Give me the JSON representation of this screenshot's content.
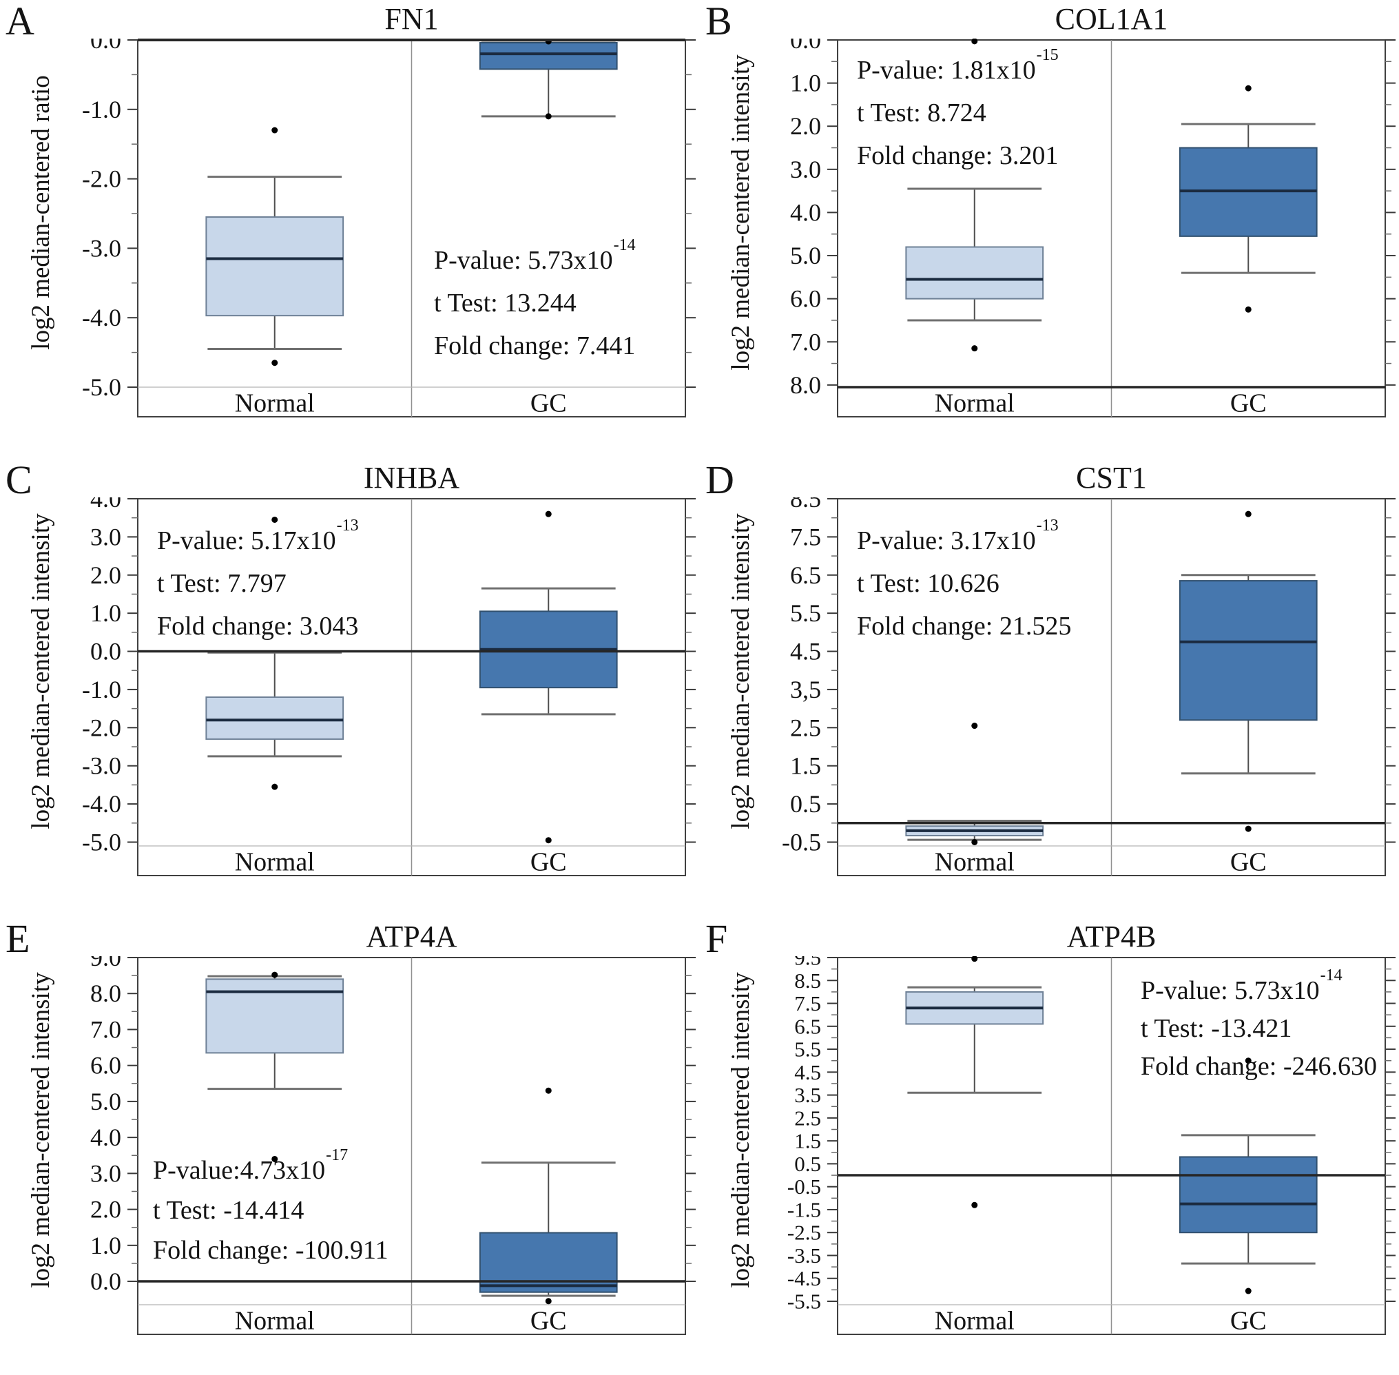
{
  "colors": {
    "box_light": "#c8d7ea",
    "box_light_border": "#6e8096",
    "box_dark": "#4677ae",
    "box_dark_border": "#32516f",
    "median": "#1b2b40",
    "whisker": "#4f4f4f",
    "cap": "#6f6f6f",
    "frame": "#404040",
    "thick_line": "#262626",
    "thin_line": "#b5b5b5",
    "divider": "#909090",
    "tick": "#3a3a3a",
    "tick_minor": "#6a6a6a",
    "outlier": "#000000",
    "text": "#141414"
  },
  "panels": [
    {
      "letter": "A",
      "title": "FN1",
      "ylabel": "log2 median-centered ratio",
      "stats": {
        "pvalue_base": "P-value: 5.73x10",
        "pvalue_exp": "-14",
        "t_test": "t Test: 13.244",
        "fold_change": "Fold change: 7.441"
      }
    },
    {
      "letter": "B",
      "title": "COL1A1",
      "ylabel": "log2 median-centered intensity",
      "stats": {
        "pvalue_base": "P-value: 1.81x10",
        "pvalue_exp": "-15",
        "t_test": "t Test: 8.724",
        "fold_change": "Fold change: 3.201"
      }
    },
    {
      "letter": "C",
      "title": "INHBA",
      "ylabel": "log2 median-centered intensity",
      "stats": {
        "pvalue_base": "P-value: 5.17x10",
        "pvalue_exp": "-13",
        "t_test": "t Test: 7.797",
        "fold_change": "Fold change: 3.043"
      }
    },
    {
      "letter": "D",
      "title": "CST1",
      "ylabel": "log2 median-centered intensity",
      "stats": {
        "pvalue_base": "P-value: 3.17x10",
        "pvalue_exp": "-13",
        "t_test": "t Test: 10.626",
        "fold_change": "Fold change: 21.525"
      }
    },
    {
      "letter": "E",
      "title": "ATP4A",
      "ylabel": "log2 median-centered intensity",
      "stats": {
        "pvalue_base": "P-value:4.73x10",
        "pvalue_exp": "-17",
        "t_test": "t Test: -14.414",
        "fold_change": "Fold change: -100.911"
      }
    },
    {
      "letter": "F",
      "title": "ATP4B",
      "ylabel": "log2 median-centered intensity",
      "stats": {
        "pvalue_base": "P-value: 5.73x10",
        "pvalue_exp": "-14",
        "t_test": "t Test: -13.421",
        "fold_change": "Fold change: -246.630"
      }
    }
  ],
  "chart_data": [
    {
      "type": "box",
      "gene": "FN1",
      "p_value": "5.73x10^-14",
      "t_test": 13.244,
      "fold_change": 7.441,
      "y_axis": {
        "top": 0.0,
        "bottom": -5.0,
        "ticks": [
          {
            "v": 0.0,
            "label": "0.0"
          },
          {
            "v": -1.0,
            "label": "-1.0"
          },
          {
            "v": -2.0,
            "label": "-2.0"
          },
          {
            "v": -3.0,
            "label": "-3.0"
          },
          {
            "v": -4.0,
            "label": "-4.0"
          },
          {
            "v": -5.0,
            "label": "-5.0"
          }
        ]
      },
      "zero_line": null,
      "top_frame_thick": true,
      "bottom_line_thick": false,
      "groups": [
        {
          "label": "Normal",
          "shade": "light",
          "whisker_top": -1.97,
          "box_top": -2.55,
          "median": -3.15,
          "box_bottom": -3.97,
          "whisker_bottom": -4.45,
          "outliers": [
            -1.3,
            -4.65
          ]
        },
        {
          "label": "GC",
          "shade": "dark",
          "whisker_top": -0.04,
          "box_top": -0.04,
          "median": -0.2,
          "box_bottom": -0.42,
          "whisker_bottom": -1.1,
          "outliers": [
            -0.02,
            -1.1
          ]
        }
      ]
    },
    {
      "type": "box",
      "gene": "COL1A1",
      "p_value": "1.81x10^-15",
      "t_test": 8.724,
      "fold_change": 3.201,
      "y_axis": {
        "top": 0.0,
        "bottom": 8.05,
        "ticks": [
          {
            "v": 0.0,
            "label": "0.0"
          },
          {
            "v": 1.0,
            "label": "1.0"
          },
          {
            "v": 2.0,
            "label": "2.0"
          },
          {
            "v": 3.0,
            "label": "3.0"
          },
          {
            "v": 4.0,
            "label": "4.0"
          },
          {
            "v": 5.0,
            "label": "5.0"
          },
          {
            "v": 6.0,
            "label": "6.0"
          },
          {
            "v": 7.0,
            "label": "7.0"
          },
          {
            "v": 8.0,
            "label": "8.0"
          }
        ]
      },
      "zero_line": null,
      "top_frame_thick": false,
      "bottom_line_thick": true,
      "groups": [
        {
          "label": "Normal",
          "shade": "light",
          "whisker_top": 3.45,
          "box_top": 4.8,
          "median": 5.55,
          "box_bottom": 6.0,
          "whisker_bottom": 6.5,
          "outliers": [
            0.03,
            7.15
          ]
        },
        {
          "label": "GC",
          "shade": "dark",
          "whisker_top": 1.95,
          "box_top": 2.5,
          "median": 3.5,
          "box_bottom": 4.55,
          "whisker_bottom": 5.4,
          "outliers": [
            1.12,
            6.25
          ]
        }
      ]
    },
    {
      "type": "box",
      "gene": "INHBA",
      "p_value": "5.17x10^-13",
      "t_test": 7.797,
      "fold_change": 3.043,
      "y_axis": {
        "top": 4.0,
        "bottom": -5.1,
        "ticks": [
          {
            "v": 4.0,
            "label": "4.0"
          },
          {
            "v": 3.0,
            "label": "3.0"
          },
          {
            "v": 2.0,
            "label": "2.0"
          },
          {
            "v": 1.0,
            "label": "1.0"
          },
          {
            "v": 0.0,
            "label": "0.0"
          },
          {
            "v": -1.0,
            "label": "-1.0"
          },
          {
            "v": -2.0,
            "label": "-2.0"
          },
          {
            "v": -3.0,
            "label": "-3.0"
          },
          {
            "v": -4.0,
            "label": "-4.0"
          },
          {
            "v": -5.0,
            "label": "-5.0"
          }
        ]
      },
      "zero_line": 0.0,
      "top_frame_thick": false,
      "bottom_line_thick": false,
      "groups": [
        {
          "label": "Normal",
          "shade": "light",
          "whisker_top": -0.03,
          "box_top": -1.2,
          "median": -1.8,
          "box_bottom": -2.3,
          "whisker_bottom": -2.75,
          "outliers": [
            3.45,
            -3.55
          ]
        },
        {
          "label": "GC",
          "shade": "dark",
          "whisker_top": 1.65,
          "box_top": 1.05,
          "median": 0.05,
          "box_bottom": -0.95,
          "whisker_bottom": -1.65,
          "outliers": [
            3.6,
            -4.95
          ]
        }
      ]
    },
    {
      "type": "box",
      "gene": "CST1",
      "p_value": "3.17x10^-13",
      "t_test": 10.626,
      "fold_change": 21.525,
      "y_axis": {
        "top": 8.5,
        "bottom": -0.6,
        "ticks": [
          {
            "v": 8.5,
            "label": "8.5"
          },
          {
            "v": 7.5,
            "label": "7.5"
          },
          {
            "v": 6.5,
            "label": "6.5"
          },
          {
            "v": 5.5,
            "label": "5.5"
          },
          {
            "v": 4.5,
            "label": "4.5"
          },
          {
            "v": 3.5,
            "label": "3,5"
          },
          {
            "v": 2.5,
            "label": "2.5"
          },
          {
            "v": 1.5,
            "label": "1.5"
          },
          {
            "v": 0.5,
            "label": "0.5"
          },
          {
            "v": -0.5,
            "label": "-0.5"
          }
        ]
      },
      "zero_line": 0.0,
      "top_frame_thick": false,
      "bottom_line_thick": false,
      "groups": [
        {
          "label": "Normal",
          "shade": "light",
          "whisker_top": 0.06,
          "box_top": -0.08,
          "median": -0.2,
          "box_bottom": -0.33,
          "whisker_bottom": -0.44,
          "outliers": [
            2.55,
            -0.5
          ]
        },
        {
          "label": "GC",
          "shade": "dark",
          "whisker_top": 6.5,
          "box_top": 6.35,
          "median": 4.75,
          "box_bottom": 2.7,
          "whisker_bottom": 1.3,
          "outliers": [
            8.1,
            -0.15
          ]
        }
      ]
    },
    {
      "type": "box",
      "gene": "ATP4A",
      "p_value": "4.73x10^-17",
      "t_test": -14.414,
      "fold_change": -100.911,
      "y_axis": {
        "top": 9.0,
        "bottom": -0.65,
        "ticks": [
          {
            "v": 9.0,
            "label": "9.0"
          },
          {
            "v": 8.0,
            "label": "8.0"
          },
          {
            "v": 7.0,
            "label": "7.0"
          },
          {
            "v": 6.0,
            "label": "6.0"
          },
          {
            "v": 5.0,
            "label": "5.0"
          },
          {
            "v": 4.0,
            "label": "4.0"
          },
          {
            "v": 3.0,
            "label": "3.0"
          },
          {
            "v": 2.0,
            "label": "2.0"
          },
          {
            "v": 1.0,
            "label": "1.0"
          },
          {
            "v": 0.0,
            "label": "0.0"
          }
        ]
      },
      "zero_line": 0.0,
      "top_frame_thick": false,
      "bottom_line_thick": false,
      "groups": [
        {
          "label": "Normal",
          "shade": "light",
          "whisker_top": 8.48,
          "box_top": 8.4,
          "median": 8.05,
          "box_bottom": 6.35,
          "whisker_bottom": 5.35,
          "outliers": [
            8.52,
            3.4
          ]
        },
        {
          "label": "GC",
          "shade": "dark",
          "whisker_top": 3.3,
          "box_top": 1.35,
          "median": -0.12,
          "box_bottom": -0.3,
          "whisker_bottom": -0.4,
          "outliers": [
            5.3,
            -0.55
          ]
        }
      ]
    },
    {
      "type": "box",
      "gene": "ATP4B",
      "p_value": "5.73x10^-14",
      "t_test": -13.421,
      "fold_change": -246.63,
      "y_axis": {
        "top": 9.5,
        "bottom": -5.65,
        "ticks": [
          {
            "v": 9.5,
            "label": "9.5"
          },
          {
            "v": 8.5,
            "label": "8.5"
          },
          {
            "v": 7.5,
            "label": "7.5"
          },
          {
            "v": 6.5,
            "label": "6.5"
          },
          {
            "v": 5.5,
            "label": "5.5"
          },
          {
            "v": 4.5,
            "label": "4.5"
          },
          {
            "v": 3.5,
            "label": "3.5"
          },
          {
            "v": 2.5,
            "label": "2.5"
          },
          {
            "v": 1.5,
            "label": "1.5"
          },
          {
            "v": 0.5,
            "label": "0.5"
          },
          {
            "v": -0.5,
            "label": "-0.5"
          },
          {
            "v": -1.5,
            "label": "-1.5"
          },
          {
            "v": -2.5,
            "label": "-2.5"
          },
          {
            "v": -3.5,
            "label": "-3.5"
          },
          {
            "v": -4.5,
            "label": "-4.5"
          },
          {
            "v": -5.5,
            "label": "-5.5"
          }
        ]
      },
      "zero_line": 0.0,
      "top_frame_thick": false,
      "bottom_line_thick": false,
      "groups": [
        {
          "label": "Normal",
          "shade": "light",
          "whisker_top": 8.2,
          "box_top": 8.0,
          "median": 7.3,
          "box_bottom": 6.6,
          "whisker_bottom": 3.6,
          "outliers": [
            9.45,
            -1.3
          ]
        },
        {
          "label": "GC",
          "shade": "dark",
          "whisker_top": 1.75,
          "box_top": 0.8,
          "median": -1.25,
          "box_bottom": -2.5,
          "whisker_bottom": -3.85,
          "outliers": [
            5.0,
            -5.05
          ]
        }
      ]
    }
  ]
}
